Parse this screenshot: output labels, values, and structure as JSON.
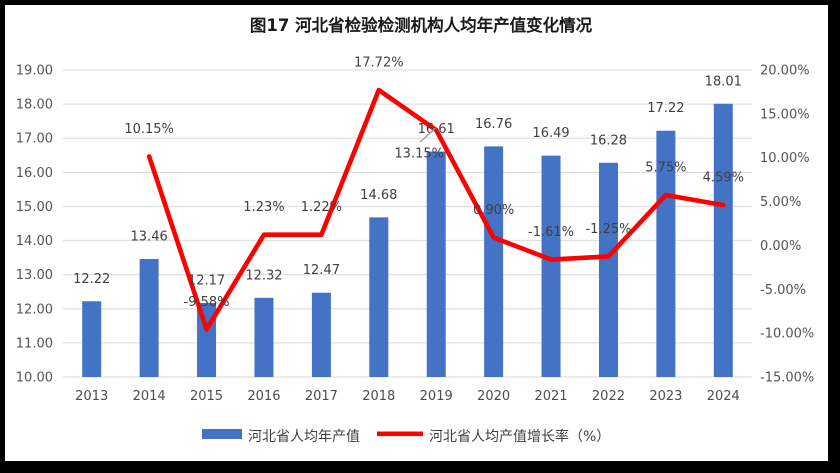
{
  "title": "图17 河北省检验检测机构人均年产值变化情况",
  "colors": {
    "bar": "#4472C4",
    "line": "#FE0000",
    "grid": "#E0E0E0",
    "leader": "#A0A0A0",
    "frame": "#000000",
    "background": "#FFFFFF"
  },
  "legend": {
    "bar_label": "河北省人均年产值",
    "line_label": "河北省人均产值增长率（%）"
  },
  "chart_data": {
    "type": "bar",
    "subtype": "bar+line combo, dual axis",
    "title": "图17 河北省检验检测机构人均年产值变化情况",
    "categories": [
      "2013",
      "2014",
      "2015",
      "2016",
      "2017",
      "2018",
      "2019",
      "2020",
      "2021",
      "2022",
      "2023",
      "2024"
    ],
    "series": [
      {
        "name": "河北省人均年产值",
        "type": "bar",
        "axis": "left",
        "values": [
          12.22,
          13.46,
          12.17,
          12.32,
          12.47,
          14.68,
          16.61,
          16.76,
          16.49,
          16.28,
          17.22,
          18.01
        ],
        "labels": [
          "12.22",
          "13.46",
          "12.17",
          "12.32",
          "12.47",
          "14.68",
          "16.61",
          "16.76",
          "16.49",
          "16.28",
          "17.22",
          "18.01"
        ]
      },
      {
        "name": "河北省人均产值增长率（%）",
        "type": "line",
        "axis": "right",
        "values": [
          null,
          10.15,
          -9.58,
          1.23,
          1.22,
          17.72,
          13.15,
          0.9,
          -1.61,
          -1.25,
          5.75,
          4.59
        ],
        "labels": [
          null,
          "10.15%",
          "-9.58%",
          "1.23%",
          "1.22%",
          "17.72%",
          "13.15%",
          "0.90%",
          "-1.61%",
          "-1.25%",
          "5.75%",
          "4.59%"
        ]
      }
    ],
    "left_axis": {
      "min": 10,
      "max": 19,
      "step": 1,
      "ticks": [
        "19.00",
        "18.00",
        "17.00",
        "16.00",
        "15.00",
        "14.00",
        "13.00",
        "12.00",
        "11.00",
        "10.00"
      ]
    },
    "right_axis": {
      "min": -15,
      "max": 20,
      "step": 5,
      "ticks": [
        "20.00%",
        "15.00%",
        "10.00%",
        "5.00%",
        "0.00%",
        "-5.00%",
        "-10.00%",
        "-15.00%"
      ]
    },
    "grid": true,
    "legend_position": "bottom",
    "label_overrides": {
      "line_labels": [
        {
          "index": 6,
          "dx": -17,
          "dy": 23,
          "leader_line": true
        }
      ]
    }
  }
}
